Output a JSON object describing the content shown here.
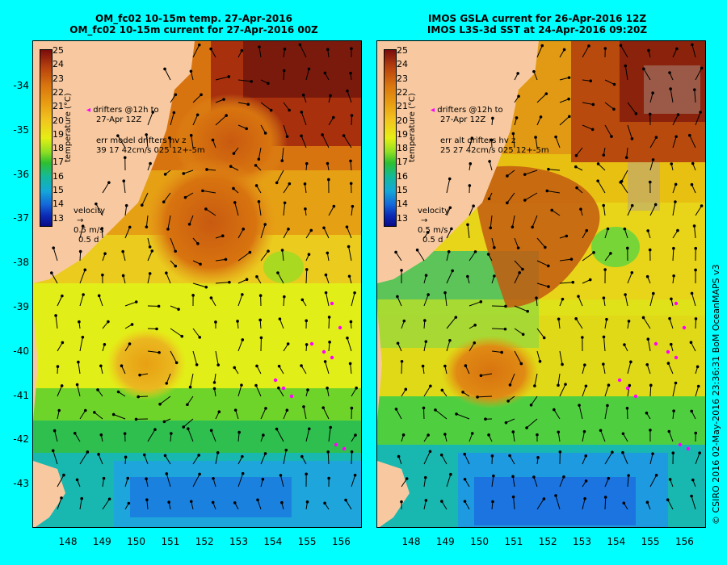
{
  "left_panel": {
    "title_line1": "OM_fc02 10-15m temp. 27-Apr-2016",
    "title_line2": "OM_fc02 10-15m current for 27-Apr-2016 00Z",
    "drifters_line1": "drifters @12h to",
    "drifters_line2": "27-Apr 12Z",
    "err_line1": "err model drifters hv z",
    "err_line2": "39 17 42cm/s 025 12+-5m",
    "velocity_label": "velocity",
    "velocity_scale1": "0.5 m/s",
    "velocity_scale2": "0.5 d"
  },
  "right_panel": {
    "title_line1": "IMOS GSLA current for 26-Apr-2016 12Z",
    "title_line2": "IMOS L3S-3d SST at 24-Apr-2016 09:20Z",
    "drifters_line1": "drifters @12h to",
    "drifters_line2": "27-Apr 12Z",
    "err_line1": "err alt drifters hv z",
    "err_line2": "25 27 42cm/s 025 12+-5m",
    "velocity_label": "velocity",
    "velocity_scale1": "0.5 m/s",
    "velocity_scale2": "0.5 d"
  },
  "colorbar": {
    "label": "temperature (°C)",
    "ticks": [
      "25",
      "24",
      "23",
      "22",
      "21",
      "20",
      "19",
      "18",
      "17",
      "16",
      "15",
      "14",
      "13"
    ]
  },
  "axes": {
    "lat_ticks": [
      "-34",
      "-35",
      "-36",
      "-37",
      "-38",
      "-39",
      "-40",
      "-41",
      "-42",
      "-43"
    ],
    "lon_ticks": [
      "148",
      "149",
      "150",
      "151",
      "152",
      "153",
      "154",
      "155",
      "156"
    ]
  },
  "credit": "© CSIRO 2016   02-May-2016 23:36:31 BoM OceanMAPS v3",
  "colors": {
    "background": "#00ffff",
    "land": "#f8c9a0",
    "drifter": "#ff00ff",
    "arrow": "#000000"
  }
}
